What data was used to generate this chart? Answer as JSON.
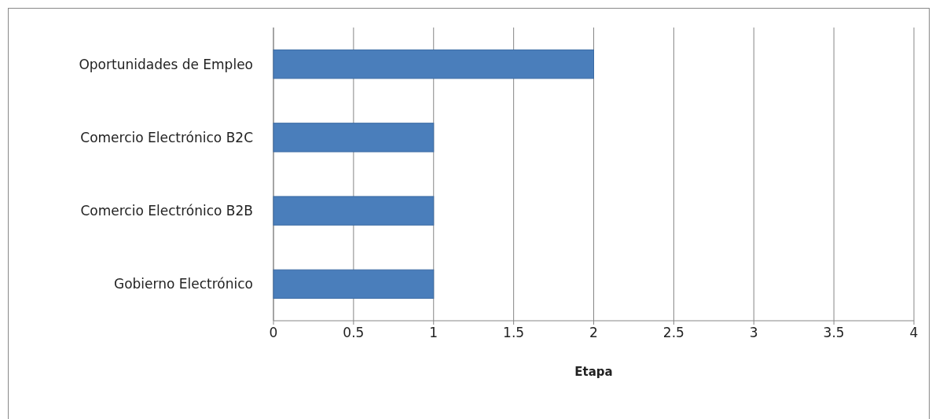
{
  "chart_data": {
    "type": "bar",
    "orientation": "horizontal",
    "xlabel": "Etapa",
    "categories": [
      "Oportunidades de Empleo",
      "Comercio Electrónico B2C",
      "Comercio Electrónico B2B",
      "Gobierno Electrónico"
    ],
    "values": [
      2,
      1,
      1,
      1
    ],
    "color": "#4a7ebb",
    "xlim": [
      0,
      4
    ],
    "xticks": [
      0,
      0.5,
      1,
      1.5,
      2,
      2.5,
      3,
      3.5,
      4
    ],
    "grid": "x"
  }
}
